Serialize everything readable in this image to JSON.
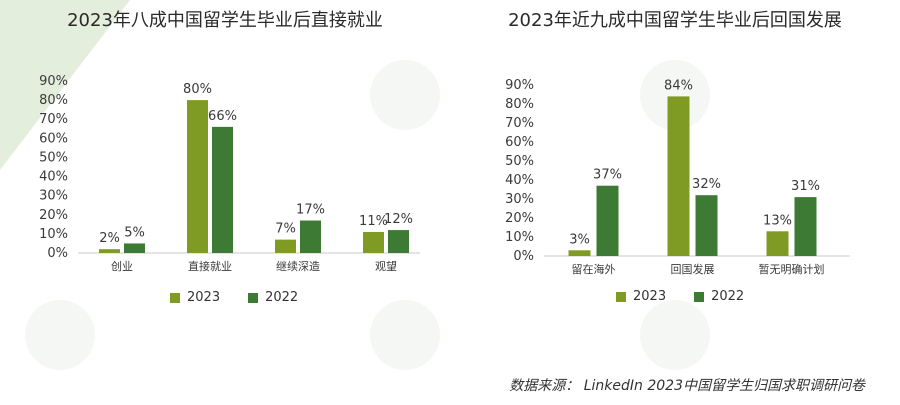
{
  "charts": [
    {
      "title": "2023年八成中国留学生毕业后直接就业",
      "legend": [
        {
          "label": "2023",
          "color": "#7f9b24"
        },
        {
          "label": "2022",
          "color": "#3d7a34"
        }
      ]
    },
    {
      "title": "2023年近九成中国留学生毕业后回国发展",
      "legend": [
        {
          "label": "2023",
          "color": "#7f9b24"
        },
        {
          "label": "2022",
          "color": "#3d7a34"
        }
      ]
    }
  ],
  "chart_data": [
    {
      "type": "bar",
      "title": "2023年八成中国留学生毕业后直接就业",
      "categories": [
        "创业",
        "直接就业",
        "继续深造",
        "观望"
      ],
      "series": [
        {
          "name": "2023",
          "color": "#7f9b24",
          "values": [
            2,
            80,
            7,
            11
          ]
        },
        {
          "name": "2022",
          "color": "#3d7a34",
          "values": [
            5,
            66,
            17,
            12
          ]
        }
      ],
      "ylim": [
        0,
        90
      ],
      "yticks": [
        "0%",
        "10%",
        "20%",
        "30%",
        "40%",
        "50%",
        "60%",
        "70%",
        "80%",
        "90%"
      ],
      "value_suffix": "%",
      "legend_position": "bottom",
      "grid": false
    },
    {
      "type": "bar",
      "title": "2023年近九成中国留学生毕业后回国发展",
      "categories": [
        "留在海外",
        "回国发展",
        "暂无明确计划"
      ],
      "series": [
        {
          "name": "2023",
          "color": "#7f9b24",
          "values": [
            3,
            84,
            13
          ]
        },
        {
          "name": "2022",
          "color": "#3d7a34",
          "values": [
            37,
            32,
            31
          ]
        }
      ],
      "ylim": [
        0,
        90
      ],
      "yticks": [
        "0%",
        "10%",
        "20%",
        "30%",
        "40%",
        "50%",
        "60%",
        "70%",
        "80%",
        "90%"
      ],
      "value_suffix": "%",
      "legend_position": "bottom",
      "grid": false
    }
  ],
  "source": "数据来源：  LinkedIn 2023中国留学生归国求职调研问卷"
}
